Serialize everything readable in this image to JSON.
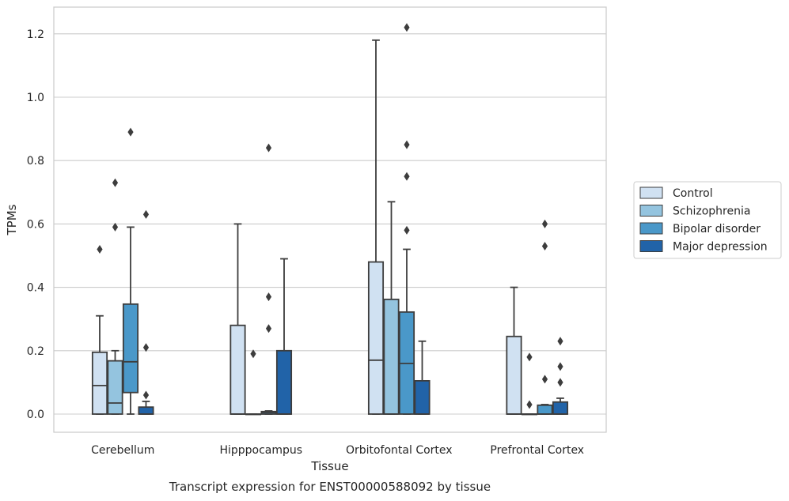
{
  "chart_data": {
    "type": "box",
    "title": "Transcript expression for ENST00000588092 by tissue",
    "xlabel": "Tissue",
    "ylabel": "TPMs",
    "ylim": [
      -0.06,
      1.28
    ],
    "yticks": [
      0.0,
      0.2,
      0.4,
      0.6,
      0.8,
      1.0,
      1.2
    ],
    "ytick_labels": [
      "0.0",
      "0.2",
      "0.4",
      "0.6",
      "0.8",
      "1.0",
      "1.2"
    ],
    "grid": "horizontal",
    "legend_position": "right",
    "categories": [
      "Cerebellum",
      "Hipppocampus",
      "Orbitofontal Cortex",
      "Prefrontal Cortex"
    ],
    "series": [
      {
        "name": "Control",
        "color": "#d0e1f2",
        "boxes": [
          {
            "whislo": 0.0,
            "q1": 0.0,
            "med": 0.09,
            "q3": 0.195,
            "whishi": 0.31,
            "fliers": [
              0.52
            ]
          },
          {
            "whislo": 0.0,
            "q1": 0.0,
            "med": 0.0,
            "q3": 0.28,
            "whishi": 0.6,
            "fliers": []
          },
          {
            "whislo": 0.0,
            "q1": 0.0,
            "med": 0.17,
            "q3": 0.48,
            "whishi": 1.18,
            "fliers": []
          },
          {
            "whislo": 0.0,
            "q1": 0.0,
            "med": 0.0,
            "q3": 0.245,
            "whishi": 0.4,
            "fliers": []
          }
        ]
      },
      {
        "name": "Schizophrenia",
        "color": "#94c4df",
        "boxes": [
          {
            "whislo": 0.0,
            "q1": 0.0,
            "med": 0.035,
            "q3": 0.168,
            "whishi": 0.2,
            "fliers": [
              0.59,
              0.73
            ]
          },
          {
            "whislo": 0.0,
            "q1": 0.0,
            "med": 0.0,
            "q3": 0.0,
            "whishi": 0.0,
            "fliers": [
              0.19
            ]
          },
          {
            "whislo": 0.0,
            "q1": 0.0,
            "med": 0.0,
            "q3": 0.362,
            "whishi": 0.67,
            "fliers": []
          },
          {
            "whislo": 0.0,
            "q1": 0.0,
            "med": 0.0,
            "q3": 0.0,
            "whishi": 0.0,
            "fliers": [
              0.03,
              0.18
            ]
          }
        ]
      },
      {
        "name": "Bipolar disorder",
        "color": "#4a98c9",
        "boxes": [
          {
            "whislo": 0.0,
            "q1": 0.068,
            "med": 0.165,
            "q3": 0.347,
            "whishi": 0.59,
            "fliers": [
              0.89
            ]
          },
          {
            "whislo": 0.0,
            "q1": 0.0,
            "med": 0.005,
            "q3": 0.008,
            "whishi": 0.01,
            "fliers": [
              0.27,
              0.37,
              0.84
            ]
          },
          {
            "whislo": 0.0,
            "q1": 0.0,
            "med": 0.16,
            "q3": 0.322,
            "whishi": 0.52,
            "fliers": [
              0.58,
              0.75,
              0.85,
              1.22
            ]
          },
          {
            "whislo": 0.0,
            "q1": 0.0,
            "med": 0.0,
            "q3": 0.028,
            "whishi": 0.03,
            "fliers": [
              0.11,
              0.53,
              0.6
            ]
          }
        ]
      },
      {
        "name": "Major depression",
        "color": "#2163a8",
        "boxes": [
          {
            "whislo": 0.0,
            "q1": 0.0,
            "med": 0.0,
            "q3": 0.022,
            "whishi": 0.04,
            "fliers": [
              0.06,
              0.21,
              0.63
            ]
          },
          {
            "whislo": 0.0,
            "q1": 0.0,
            "med": 0.0,
            "q3": 0.2,
            "whishi": 0.49,
            "fliers": []
          },
          {
            "whislo": 0.0,
            "q1": 0.0,
            "med": 0.0,
            "q3": 0.105,
            "whishi": 0.23,
            "fliers": []
          },
          {
            "whislo": 0.0,
            "q1": 0.0,
            "med": 0.0,
            "q3": 0.038,
            "whishi": 0.05,
            "fliers": [
              0.1,
              0.15,
              0.23
            ]
          }
        ]
      }
    ]
  }
}
